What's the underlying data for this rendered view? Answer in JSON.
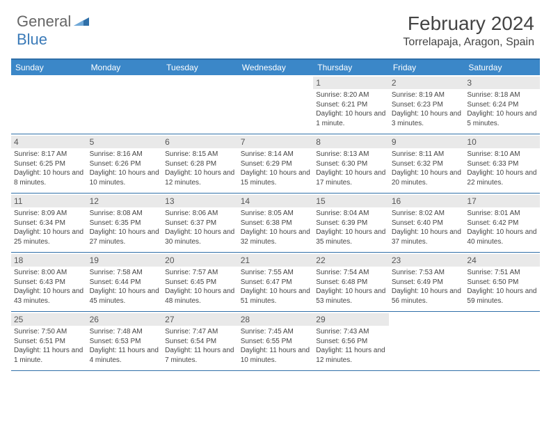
{
  "logo": {
    "general": "General",
    "blue": "Blue"
  },
  "title": "February 2024",
  "location": "Torrelapaja, Aragon, Spain",
  "colors": {
    "header_bar": "#3b87c8",
    "border": "#2f6fa8",
    "daynum_bg": "#e9e9e9",
    "text": "#444444",
    "logo_gray": "#666666",
    "logo_blue": "#3a7ab8"
  },
  "weekdays": [
    "Sunday",
    "Monday",
    "Tuesday",
    "Wednesday",
    "Thursday",
    "Friday",
    "Saturday"
  ],
  "weeks": [
    [
      {
        "empty": true
      },
      {
        "empty": true
      },
      {
        "empty": true
      },
      {
        "empty": true
      },
      {
        "num": "1",
        "sunrise": "8:20 AM",
        "sunset": "6:21 PM",
        "daylight": "10 hours and 1 minute."
      },
      {
        "num": "2",
        "sunrise": "8:19 AM",
        "sunset": "6:23 PM",
        "daylight": "10 hours and 3 minutes."
      },
      {
        "num": "3",
        "sunrise": "8:18 AM",
        "sunset": "6:24 PM",
        "daylight": "10 hours and 5 minutes."
      }
    ],
    [
      {
        "num": "4",
        "sunrise": "8:17 AM",
        "sunset": "6:25 PM",
        "daylight": "10 hours and 8 minutes."
      },
      {
        "num": "5",
        "sunrise": "8:16 AM",
        "sunset": "6:26 PM",
        "daylight": "10 hours and 10 minutes."
      },
      {
        "num": "6",
        "sunrise": "8:15 AM",
        "sunset": "6:28 PM",
        "daylight": "10 hours and 12 minutes."
      },
      {
        "num": "7",
        "sunrise": "8:14 AM",
        "sunset": "6:29 PM",
        "daylight": "10 hours and 15 minutes."
      },
      {
        "num": "8",
        "sunrise": "8:13 AM",
        "sunset": "6:30 PM",
        "daylight": "10 hours and 17 minutes."
      },
      {
        "num": "9",
        "sunrise": "8:11 AM",
        "sunset": "6:32 PM",
        "daylight": "10 hours and 20 minutes."
      },
      {
        "num": "10",
        "sunrise": "8:10 AM",
        "sunset": "6:33 PM",
        "daylight": "10 hours and 22 minutes."
      }
    ],
    [
      {
        "num": "11",
        "sunrise": "8:09 AM",
        "sunset": "6:34 PM",
        "daylight": "10 hours and 25 minutes."
      },
      {
        "num": "12",
        "sunrise": "8:08 AM",
        "sunset": "6:35 PM",
        "daylight": "10 hours and 27 minutes."
      },
      {
        "num": "13",
        "sunrise": "8:06 AM",
        "sunset": "6:37 PM",
        "daylight": "10 hours and 30 minutes."
      },
      {
        "num": "14",
        "sunrise": "8:05 AM",
        "sunset": "6:38 PM",
        "daylight": "10 hours and 32 minutes."
      },
      {
        "num": "15",
        "sunrise": "8:04 AM",
        "sunset": "6:39 PM",
        "daylight": "10 hours and 35 minutes."
      },
      {
        "num": "16",
        "sunrise": "8:02 AM",
        "sunset": "6:40 PM",
        "daylight": "10 hours and 37 minutes."
      },
      {
        "num": "17",
        "sunrise": "8:01 AM",
        "sunset": "6:42 PM",
        "daylight": "10 hours and 40 minutes."
      }
    ],
    [
      {
        "num": "18",
        "sunrise": "8:00 AM",
        "sunset": "6:43 PM",
        "daylight": "10 hours and 43 minutes."
      },
      {
        "num": "19",
        "sunrise": "7:58 AM",
        "sunset": "6:44 PM",
        "daylight": "10 hours and 45 minutes."
      },
      {
        "num": "20",
        "sunrise": "7:57 AM",
        "sunset": "6:45 PM",
        "daylight": "10 hours and 48 minutes."
      },
      {
        "num": "21",
        "sunrise": "7:55 AM",
        "sunset": "6:47 PM",
        "daylight": "10 hours and 51 minutes."
      },
      {
        "num": "22",
        "sunrise": "7:54 AM",
        "sunset": "6:48 PM",
        "daylight": "10 hours and 53 minutes."
      },
      {
        "num": "23",
        "sunrise": "7:53 AM",
        "sunset": "6:49 PM",
        "daylight": "10 hours and 56 minutes."
      },
      {
        "num": "24",
        "sunrise": "7:51 AM",
        "sunset": "6:50 PM",
        "daylight": "10 hours and 59 minutes."
      }
    ],
    [
      {
        "num": "25",
        "sunrise": "7:50 AM",
        "sunset": "6:51 PM",
        "daylight": "11 hours and 1 minute."
      },
      {
        "num": "26",
        "sunrise": "7:48 AM",
        "sunset": "6:53 PM",
        "daylight": "11 hours and 4 minutes."
      },
      {
        "num": "27",
        "sunrise": "7:47 AM",
        "sunset": "6:54 PM",
        "daylight": "11 hours and 7 minutes."
      },
      {
        "num": "28",
        "sunrise": "7:45 AM",
        "sunset": "6:55 PM",
        "daylight": "11 hours and 10 minutes."
      },
      {
        "num": "29",
        "sunrise": "7:43 AM",
        "sunset": "6:56 PM",
        "daylight": "11 hours and 12 minutes."
      },
      {
        "empty": true
      },
      {
        "empty": true
      }
    ]
  ],
  "labels": {
    "sunrise": "Sunrise: ",
    "sunset": "Sunset: ",
    "daylight": "Daylight: "
  }
}
